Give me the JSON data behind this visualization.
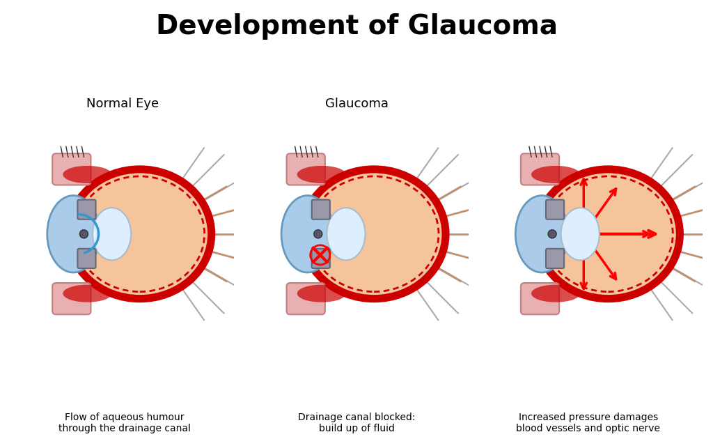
{
  "title": "Development of Glaucoma",
  "title_fontsize": 28,
  "title_fontweight": "bold",
  "background_color": "#ffffff",
  "panel_labels": [
    "Normal Eye",
    "Glaucoma",
    ""
  ],
  "panel_descriptions": [
    "Flow of aqueous humour\nthrough the drainage canal",
    "Drainage canal blocked:\nbuild up of fluid",
    "Increased pressure damages\nblood vessels and optic nerve"
  ],
  "colors": {
    "eye_outer_red": "#cc0000",
    "eye_fill_orange": "#f5c49a",
    "cornea_blue": "#aacce8",
    "lens_white": "#ddeeff",
    "iris_gray": "#888899",
    "sclera_red": "#cc2222",
    "fluid_blue": "#66aadd",
    "arrow_blue": "#3399cc",
    "arrow_red": "#dd0000",
    "muscle_pink": "#e8a0a0",
    "nerve_lines": "#888866",
    "blocked_red": "#dd0000",
    "pressure_red": "#cc0000"
  }
}
